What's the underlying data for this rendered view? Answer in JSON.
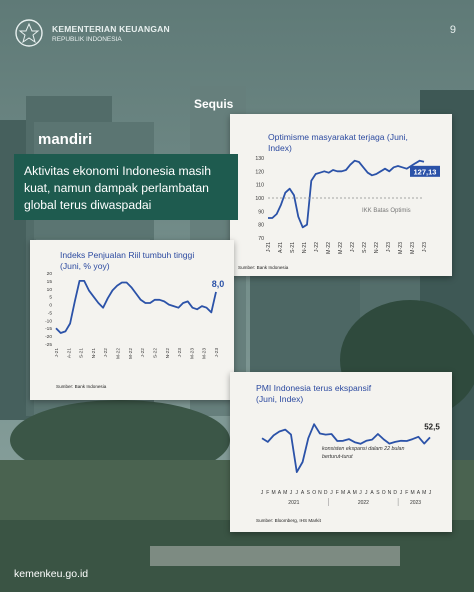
{
  "header": {
    "org_name": "KEMENTERIAN KEUANGAN",
    "org_sub": "REPUBLIK INDONESIA",
    "page_number": "9"
  },
  "headline": "Aktivitas ekonomi Indonesia masih kuat, namun dampak perlambatan global terus diwaspadai",
  "footer": "kemenkeu.go.id",
  "background": {
    "building_signs": [
      "mandiri",
      "Sequis"
    ]
  },
  "colors": {
    "line": "#2b52a8",
    "headline_bg": "#1e5b4f",
    "card_bg": "#f4f3ef",
    "badge_bg": "#2b52a8"
  },
  "chart_data": [
    {
      "type": "line",
      "title_lines": [
        "Optimisme masyarakat terjaga (Juni,",
        "Index)"
      ],
      "y_ticks": [
        "130",
        "120",
        "110",
        "100",
        "90",
        "80",
        "70"
      ],
      "ylim": [
        70,
        130
      ],
      "x_ticks": [
        "J-21",
        "A-21",
        "S-21",
        "N-21",
        "J-22",
        "M-22",
        "M-22",
        "J-22",
        "S-22",
        "N-22",
        "J-23",
        "M-23",
        "M-23",
        "J-23"
      ],
      "series": [
        {
          "values": [
            85,
            85,
            88,
            95,
            104,
            107,
            102,
            86,
            78,
            80,
            113,
            118,
            119,
            120,
            119,
            121,
            120,
            120,
            121,
            125,
            128,
            127,
            123,
            119,
            117,
            118,
            120,
            122,
            120,
            123,
            124,
            123,
            122,
            124,
            126,
            128,
            127.13
          ]
        }
      ],
      "threshold": {
        "value": 100,
        "label": "IKK Batas Optimis"
      },
      "callout": "127,13",
      "source": "Sumber: Bank Indonesia"
    },
    {
      "type": "line",
      "title_lines": [
        "Indeks Penjualan Riil tumbuh tinggi",
        "(Juni, % yoy)"
      ],
      "y_ticks": [
        "20",
        "15",
        "10",
        "5",
        "0",
        "-5",
        "-10",
        "-15",
        "-20",
        "-25"
      ],
      "ylim": [
        -25,
        20
      ],
      "x_ticks": [
        "J-21",
        "A-21",
        "S-21",
        "N-21",
        "J-22",
        "M-22",
        "M-22",
        "J-22",
        "S-22",
        "N-22",
        "J-23",
        "M-23",
        "M-23",
        "J-23"
      ],
      "series": [
        {
          "values": [
            -15,
            -18,
            -17,
            -12,
            2,
            15,
            15,
            9,
            5,
            1,
            -2,
            4,
            9,
            12,
            14,
            14,
            11,
            7,
            3,
            1,
            1,
            3,
            3,
            2,
            0,
            -1,
            -2,
            1,
            2,
            -2,
            -3,
            -1,
            -2,
            -5,
            8
          ]
        }
      ],
      "callout": "8,0",
      "source": "Sumber: Bank Indonesia"
    },
    {
      "type": "line",
      "title_lines": [
        "PMI Indonesia terus ekspansif",
        "(Juni, Index)"
      ],
      "annotation_lines": [
        "konsisten ekspansi dalam 22 bulan",
        "berturut-turut"
      ],
      "ylim": [
        38,
        58
      ],
      "x_months": [
        "J",
        "F",
        "M",
        "A",
        "M",
        "J",
        "J",
        "A",
        "S",
        "O",
        "N",
        "D",
        "J",
        "F",
        "M",
        "A",
        "M",
        "J",
        "J",
        "A",
        "S",
        "O",
        "N",
        "D",
        "J",
        "F",
        "M",
        "A",
        "M",
        "J"
      ],
      "x_years": [
        "2021",
        "2022",
        "2023"
      ],
      "series": [
        {
          "values": [
            52.2,
            50.9,
            53.2,
            54.6,
            55.3,
            53.5,
            40.1,
            43.7,
            52.2,
            57.2,
            53.9,
            53.5,
            53.7,
            51.2,
            51.3,
            51.9,
            50.8,
            50.2,
            51.3,
            51.7,
            53.7,
            51.8,
            50.3,
            50.9,
            51.3,
            51.2,
            51.9,
            52.7,
            50.3,
            52.5
          ]
        }
      ],
      "callout": "52,5",
      "source": "Sumber: Bloomberg, IHS Markit"
    }
  ]
}
